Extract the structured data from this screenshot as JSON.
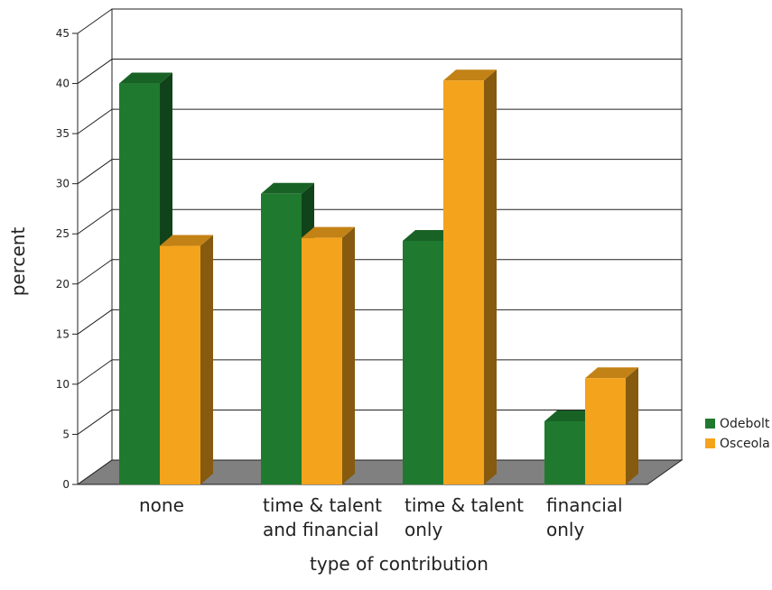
{
  "chart_data": {
    "type": "bar",
    "title": "",
    "xlabel": "type of contribution",
    "ylabel": "percent",
    "ylim": [
      0,
      45
    ],
    "yticks": [
      0,
      5,
      10,
      15,
      20,
      25,
      30,
      35,
      40,
      45
    ],
    "grid": true,
    "legend_position": "right",
    "categories": [
      [
        "none"
      ],
      [
        "time & talent",
        "and financial"
      ],
      [
        "time & talent",
        "only"
      ],
      [
        "financial",
        "only"
      ]
    ],
    "series": [
      {
        "name": "Odebolt",
        "color": "#1f7a2f",
        "values": [
          40,
          29,
          24.3,
          6.3
        ]
      },
      {
        "name": "Osceola",
        "color": "#f4a31c",
        "values": [
          23.8,
          24.6,
          40.3,
          10.6
        ]
      }
    ]
  }
}
